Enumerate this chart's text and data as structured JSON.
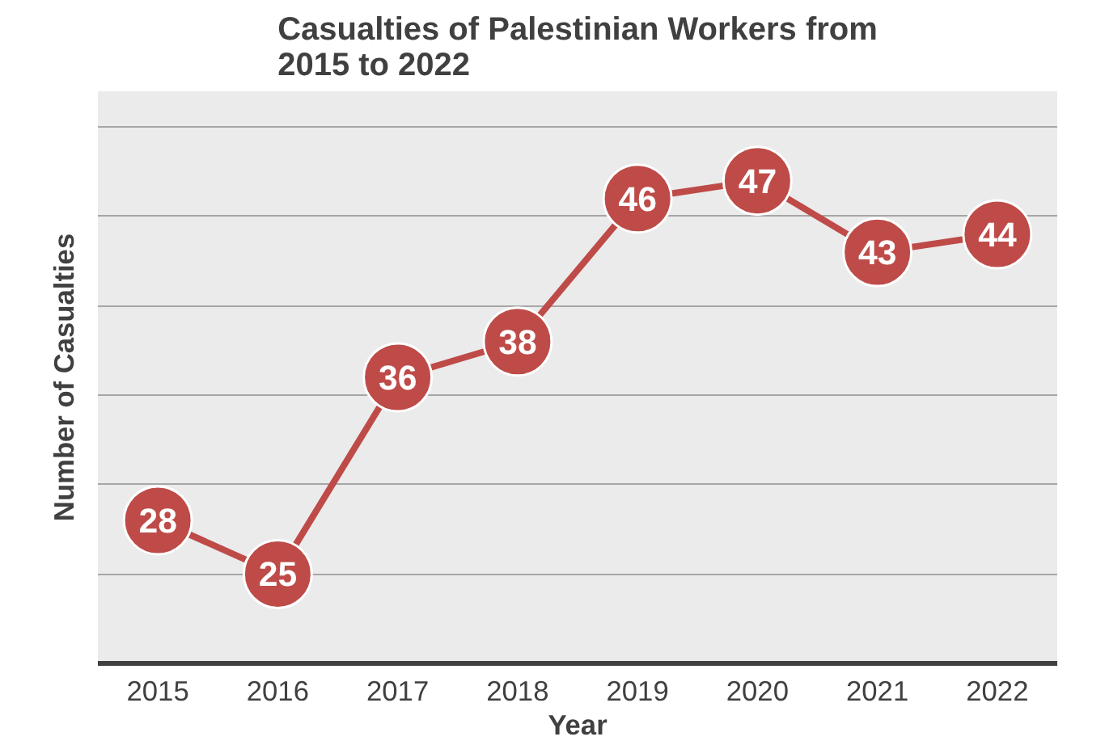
{
  "chart_data": {
    "type": "line",
    "title": "Casualties of Palestinian Workers from 2015 to 2022",
    "xlabel": "Year",
    "ylabel": "Number of Casualties",
    "categories": [
      "2015",
      "2016",
      "2017",
      "2018",
      "2019",
      "2020",
      "2021",
      "2022"
    ],
    "series": [
      {
        "color": "#be4b48",
        "values": [
          28,
          25,
          36,
          38,
          46,
          47,
          43,
          44
        ]
      }
    ],
    "ylim": [
      20,
      52
    ],
    "yticks": [
      {
        "value": 20,
        "label": null
      },
      {
        "value": 25,
        "label": null
      },
      {
        "value": 30,
        "label": null
      },
      {
        "value": 35,
        "label": null
      },
      {
        "value": 40,
        "label": null
      },
      {
        "value": 45,
        "label": null
      },
      {
        "value": 50,
        "label": null
      }
    ],
    "grid": "y",
    "tick_labels": "x",
    "marker": "circle",
    "line_style": "solid",
    "data_labels": true
  }
}
